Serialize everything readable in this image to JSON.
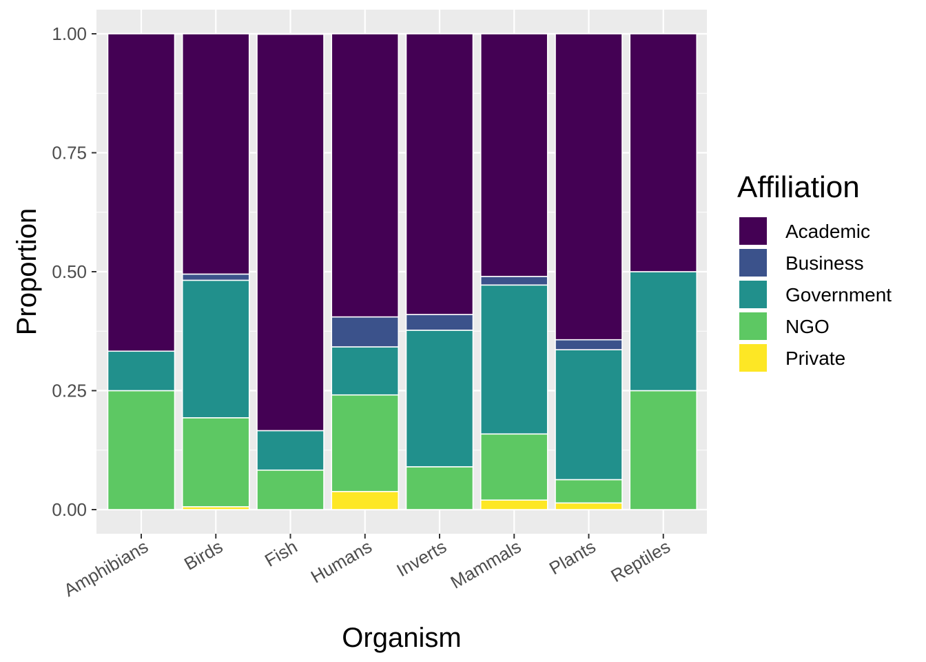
{
  "chart_data": {
    "type": "bar",
    "stacked": true,
    "title": "",
    "xlabel": "Organism",
    "ylabel": "Proportion",
    "ylim": [
      0,
      1
    ],
    "yticks": [
      0,
      0.25,
      0.5,
      0.75,
      1
    ],
    "ytick_labels": [
      "0.00",
      "0.25",
      "0.50",
      "0.75",
      "1.00"
    ],
    "categories": [
      "Amphibians",
      "Birds",
      "Fish",
      "Humans",
      "Inverts",
      "Mammals",
      "Plants",
      "Reptiles"
    ],
    "legend": {
      "title": "Affiliation",
      "position": "right"
    },
    "series": [
      {
        "name": "Academic",
        "color": "#440154",
        "values": [
          0.667,
          0.505,
          0.833,
          0.595,
          0.59,
          0.51,
          0.643,
          0.5
        ]
      },
      {
        "name": "Business",
        "color": "#3B528B",
        "values": [
          0.0,
          0.013,
          0.0,
          0.063,
          0.033,
          0.018,
          0.021,
          0.0
        ]
      },
      {
        "name": "Government",
        "color": "#21908C",
        "values": [
          0.083,
          0.289,
          0.083,
          0.101,
          0.287,
          0.313,
          0.273,
          0.25
        ]
      },
      {
        "name": "NGO",
        "color": "#5DC863",
        "values": [
          0.25,
          0.187,
          0.083,
          0.203,
          0.09,
          0.139,
          0.049,
          0.25
        ]
      },
      {
        "name": "Private",
        "color": "#FDE725",
        "values": [
          0.0,
          0.006,
          0.0,
          0.038,
          0.0,
          0.02,
          0.014,
          0.0
        ]
      }
    ]
  }
}
